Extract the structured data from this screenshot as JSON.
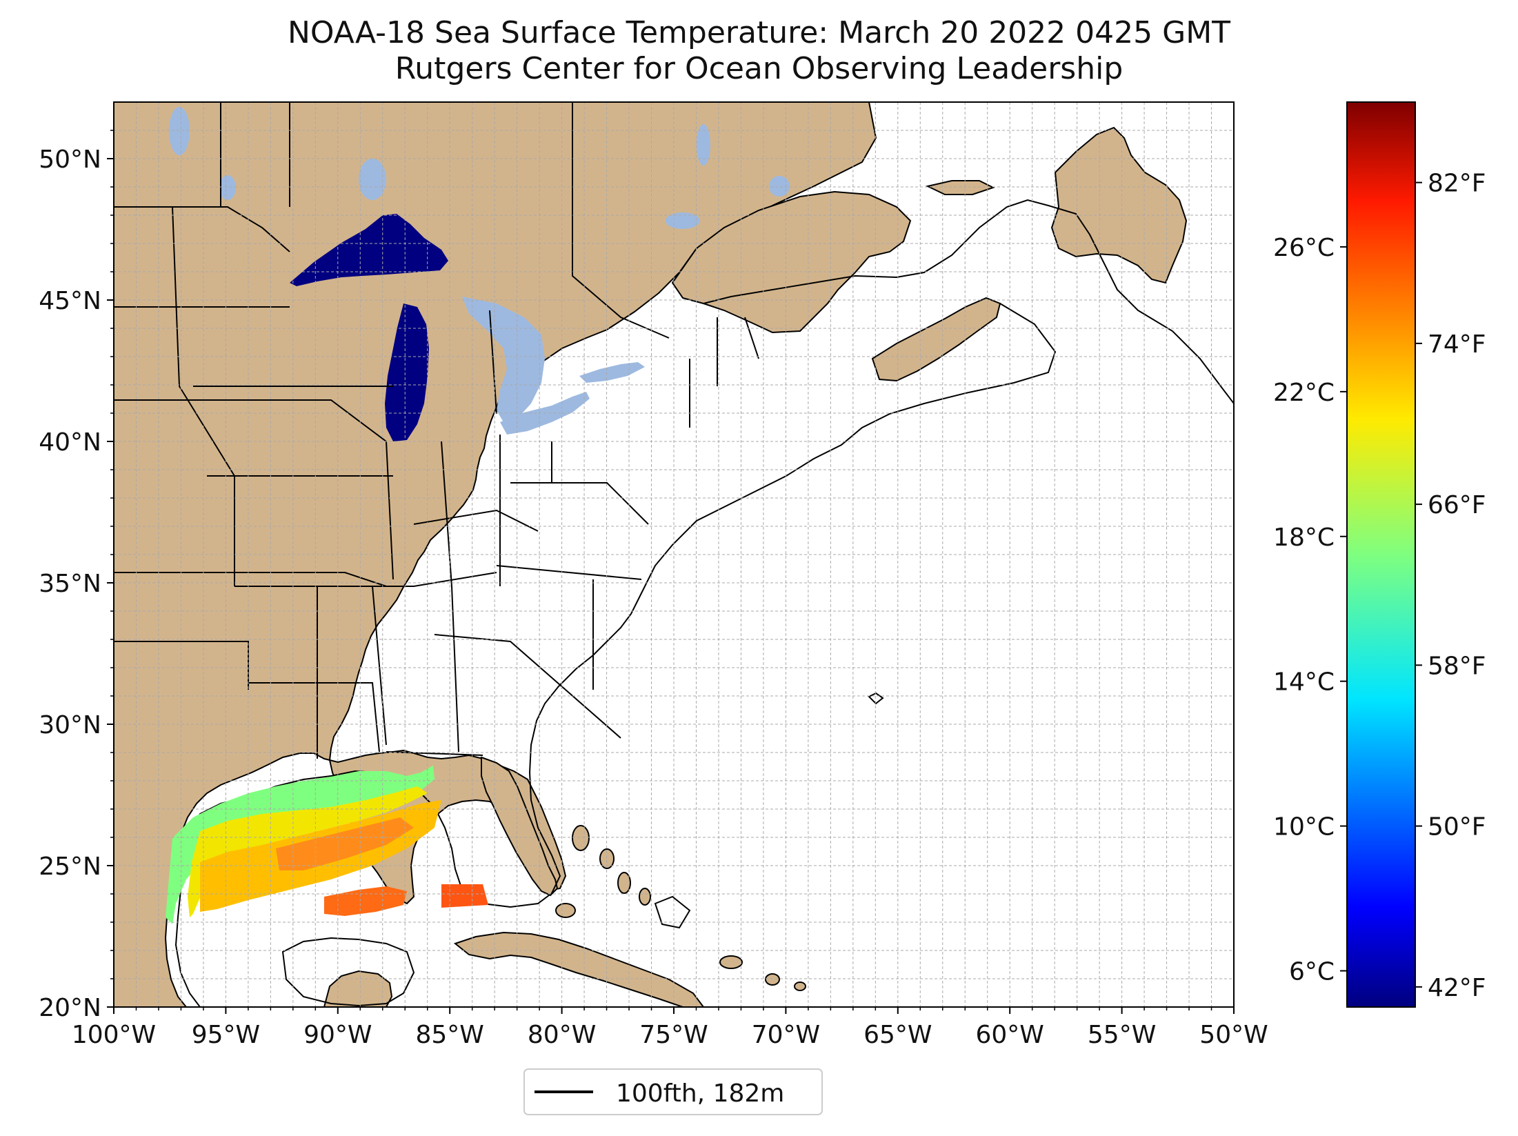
{
  "title": {
    "line1": "NOAA-18 Sea Surface Temperature: March 20 2022 0425 GMT",
    "line2": "Rutgers Center for Ocean Observing Leadership"
  },
  "map": {
    "projection": "plate-carree",
    "lon_range": [
      -100,
      -50
    ],
    "lat_range": [
      20,
      52
    ],
    "land_color": "#d2b48c",
    "ocean_color": "#ffffff",
    "lake_color": "#9db9e0",
    "lake_superior_color": "#000080",
    "gridlines": "dashed, every 1 degree",
    "lon_ticks": [
      "100°W",
      "95°W",
      "90°W",
      "85°W",
      "80°W",
      "75°W",
      "70°W",
      "65°W",
      "60°W",
      "55°W",
      "50°W"
    ],
    "lat_ticks": [
      "20°N",
      "25°N",
      "30°N",
      "35°N",
      "40°N",
      "45°N",
      "50°N"
    ]
  },
  "colorbar": {
    "colormap": "jet",
    "celsius_ticks": [
      "6°C",
      "10°C",
      "14°C",
      "18°C",
      "22°C",
      "26°C"
    ],
    "fahrenheit_ticks": [
      "42°F",
      "50°F",
      "58°F",
      "66°F",
      "74°F",
      "82°F"
    ]
  },
  "legend": {
    "entries": [
      {
        "label": "100fth, 182m",
        "color": "#000000"
      }
    ]
  }
}
